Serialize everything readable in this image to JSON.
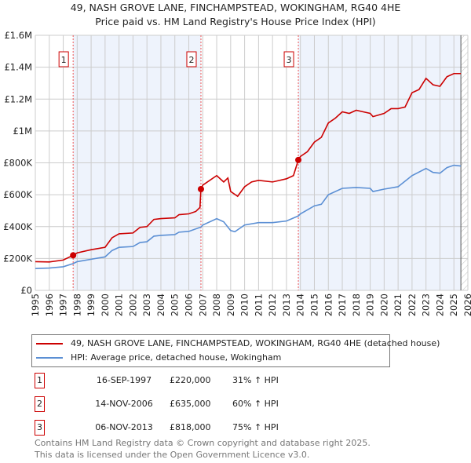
{
  "chart_data": {
    "type": "line",
    "title": "49, NASH GROVE LANE, FINCHAMPSTEAD, WOKINGHAM, RG40 4HE",
    "subtitle": "Price paid vs. HM Land Registry's House Price Index (HPI)",
    "xlim": [
      1995,
      2026
    ],
    "ylim": [
      0,
      1600000
    ],
    "y_ticks": [
      {
        "v": 0,
        "label": "£0"
      },
      {
        "v": 200000,
        "label": "£200K"
      },
      {
        "v": 400000,
        "label": "£400K"
      },
      {
        "v": 600000,
        "label": "£600K"
      },
      {
        "v": 800000,
        "label": "£800K"
      },
      {
        "v": 1000000,
        "label": "£1M"
      },
      {
        "v": 1200000,
        "label": "£1.2M"
      },
      {
        "v": 1400000,
        "label": "£1.4M"
      },
      {
        "v": 1600000,
        "label": "£1.6M"
      }
    ],
    "x_ticks": [
      "1995",
      "1996",
      "1997",
      "1998",
      "1999",
      "2000",
      "2001",
      "2002",
      "2003",
      "2004",
      "2005",
      "2006",
      "2007",
      "2008",
      "2009",
      "2010",
      "2011",
      "2012",
      "2013",
      "2014",
      "2015",
      "2016",
      "2017",
      "2018",
      "2019",
      "2020",
      "2021",
      "2022",
      "2023",
      "2024",
      "2025",
      "2026"
    ],
    "grid": true,
    "series": [
      {
        "name": "49, NASH GROVE LANE, FINCHAMPSTEAD, WOKINGHAM, RG40 4HE (detached house)",
        "color": "#cc0000",
        "x": [
          1995,
          1996,
          1997,
          1997.71,
          1998,
          1999,
          2000,
          2000.5,
          2001,
          2002,
          2002.5,
          2003,
          2003.5,
          2004,
          2005,
          2005.3,
          2006,
          2006.5,
          2006.8,
          2006.87,
          2007,
          2008,
          2008.5,
          2008.8,
          2009,
          2009.5,
          2010,
          2010.5,
          2011,
          2012,
          2012.5,
          2013,
          2013.5,
          2013.85,
          2014,
          2014.5,
          2015,
          2015.5,
          2016,
          2016.5,
          2017,
          2017.5,
          2018,
          2018.5,
          2019,
          2019.2,
          2020,
          2020.5,
          2021,
          2021.5,
          2022,
          2022.5,
          2023,
          2023.5,
          2024,
          2024.5,
          2025,
          2025.5
        ],
        "y": [
          180000,
          178000,
          190000,
          220000,
          235000,
          255000,
          270000,
          330000,
          355000,
          360000,
          395000,
          400000,
          445000,
          450000,
          455000,
          475000,
          480000,
          495000,
          520000,
          635000,
          660000,
          720000,
          680000,
          705000,
          620000,
          590000,
          650000,
          680000,
          690000,
          680000,
          690000,
          700000,
          720000,
          818000,
          840000,
          870000,
          930000,
          960000,
          1050000,
          1080000,
          1120000,
          1110000,
          1130000,
          1120000,
          1110000,
          1090000,
          1110000,
          1140000,
          1140000,
          1150000,
          1240000,
          1260000,
          1330000,
          1290000,
          1280000,
          1340000,
          1360000,
          1360000
        ]
      },
      {
        "name": "HPI: Average price, detached house, Wokingham",
        "color": "#5b8fd4",
        "x": [
          1995,
          1996,
          1997,
          1997.71,
          1998,
          1999,
          2000,
          2000.5,
          2001,
          2002,
          2002.5,
          2003,
          2003.5,
          2004,
          2005,
          2005.3,
          2006,
          2006.87,
          2007,
          2008,
          2008.5,
          2009,
          2009.3,
          2010,
          2011,
          2012,
          2013,
          2013.85,
          2014,
          2015,
          2015.5,
          2016,
          2017,
          2018,
          2019,
          2019.2,
          2020,
          2021,
          2022,
          2023,
          2023.5,
          2024,
          2024.5,
          2025,
          2025.5
        ],
        "y": [
          137000,
          140000,
          148000,
          168000,
          180000,
          195000,
          210000,
          250000,
          270000,
          275000,
          300000,
          305000,
          340000,
          345000,
          350000,
          365000,
          370000,
          397000,
          410000,
          450000,
          430000,
          375000,
          368000,
          410000,
          425000,
          425000,
          435000,
          467000,
          480000,
          530000,
          540000,
          600000,
          640000,
          645000,
          640000,
          620000,
          635000,
          650000,
          720000,
          765000,
          740000,
          735000,
          770000,
          785000,
          780000
        ]
      }
    ],
    "sales": [
      {
        "num": "1",
        "x": 1997.71,
        "y": 220000,
        "date": "16-SEP-1997",
        "price": "£220,000",
        "hpi": "31% ↑ HPI"
      },
      {
        "num": "2",
        "x": 2006.87,
        "y": 635000,
        "date": "14-NOV-2006",
        "price": "£635,000",
        "hpi": "60% ↑ HPI"
      },
      {
        "num": "3",
        "x": 2013.85,
        "y": 818000,
        "date": "06-NOV-2013",
        "price": "£818,000",
        "hpi": "75% ↑ HPI"
      }
    ],
    "forecast_start": 2025.5,
    "legend_placement": "below"
  },
  "footer": {
    "line1": "Contains HM Land Registry data © Crown copyright and database right 2025.",
    "line2": "This data is licensed under the Open Government Licence v3.0."
  }
}
